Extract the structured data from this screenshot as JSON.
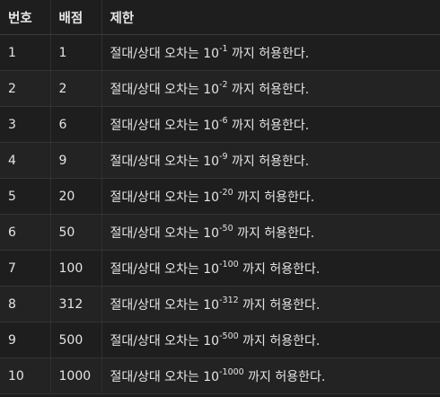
{
  "headers": {
    "number": "번호",
    "score": "배점",
    "limit": "제한"
  },
  "rows": [
    {
      "number": "1",
      "score": "1",
      "prefix": "절대/상대 오차는 10",
      "exponent": "-1",
      "suffix": " 까지 허용한다."
    },
    {
      "number": "2",
      "score": "2",
      "prefix": "절대/상대 오차는 10",
      "exponent": "-2",
      "suffix": " 까지 허용한다."
    },
    {
      "number": "3",
      "score": "6",
      "prefix": "절대/상대 오차는 10",
      "exponent": "-6",
      "suffix": " 까지 허용한다."
    },
    {
      "number": "4",
      "score": "9",
      "prefix": "절대/상대 오차는 10",
      "exponent": "-9",
      "suffix": " 까지 허용한다."
    },
    {
      "number": "5",
      "score": "20",
      "prefix": "절대/상대 오차는 10",
      "exponent": "-20",
      "suffix": " 까지 허용한다."
    },
    {
      "number": "6",
      "score": "50",
      "prefix": "절대/상대 오차는 10",
      "exponent": "-50",
      "suffix": " 까지 허용한다."
    },
    {
      "number": "7",
      "score": "100",
      "prefix": "절대/상대 오차는 10",
      "exponent": "-100",
      "suffix": " 까지 허용한다."
    },
    {
      "number": "8",
      "score": "312",
      "prefix": "절대/상대 오차는 10",
      "exponent": "-312",
      "suffix": " 까지 허용한다."
    },
    {
      "number": "9",
      "score": "500",
      "prefix": "절대/상대 오차는 10",
      "exponent": "-500",
      "suffix": " 까지 허용한다."
    },
    {
      "number": "10",
      "score": "1000",
      "prefix": "절대/상대 오차는 10",
      "exponent": "-1000",
      "suffix": " 까지 허용한다."
    }
  ]
}
